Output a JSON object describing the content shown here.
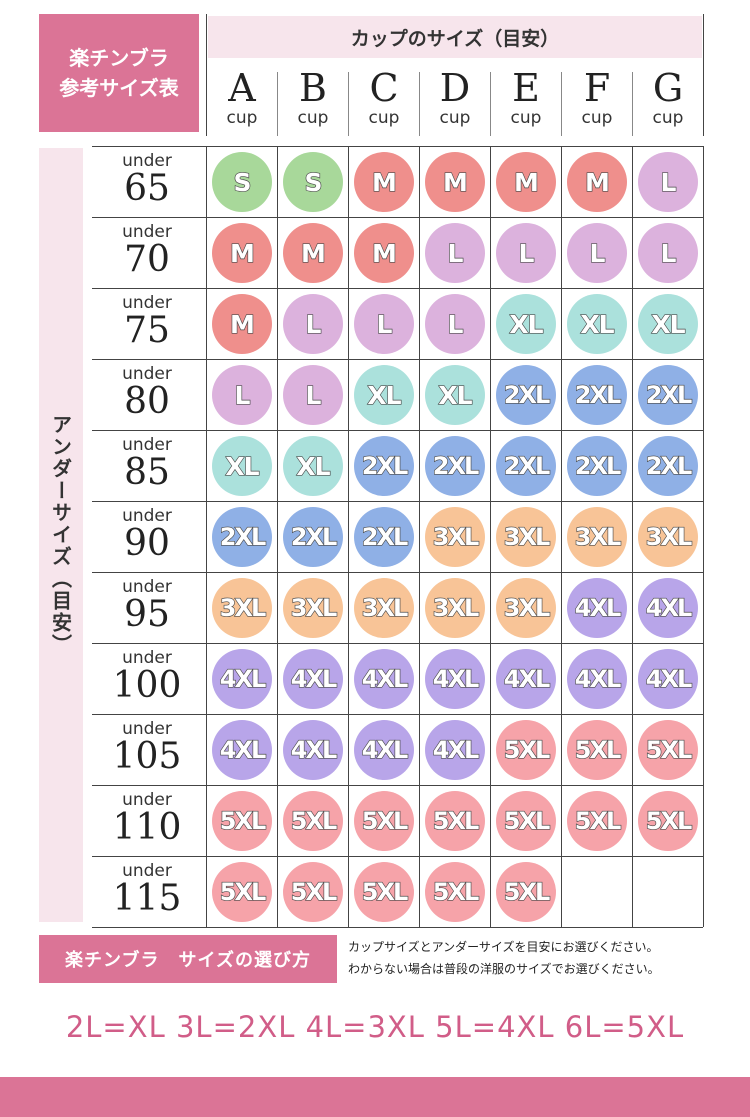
{
  "title_box": {
    "line1": "楽チンブラ",
    "line2": "参考サイズ表"
  },
  "cup_header": "カップのサイズ（目安）",
  "under_header": "アンダーサイズ（目安）",
  "cups": [
    {
      "letter": "A",
      "word": "cup"
    },
    {
      "letter": "B",
      "word": "cup"
    },
    {
      "letter": "C",
      "word": "cup"
    },
    {
      "letter": "D",
      "word": "cup"
    },
    {
      "letter": "E",
      "word": "cup"
    },
    {
      "letter": "F",
      "word": "cup"
    },
    {
      "letter": "G",
      "word": "cup"
    }
  ],
  "rows": [
    {
      "under": "under",
      "num": "65",
      "sizes": [
        "S",
        "S",
        "M",
        "M",
        "M",
        "M",
        "L"
      ]
    },
    {
      "under": "under",
      "num": "70",
      "sizes": [
        "M",
        "M",
        "M",
        "L",
        "L",
        "L",
        "L"
      ]
    },
    {
      "under": "under",
      "num": "75",
      "sizes": [
        "M",
        "L",
        "L",
        "L",
        "XL",
        "XL",
        "XL"
      ]
    },
    {
      "under": "under",
      "num": "80",
      "sizes": [
        "L",
        "L",
        "XL",
        "XL",
        "2XL",
        "2XL",
        "2XL"
      ]
    },
    {
      "under": "under",
      "num": "85",
      "sizes": [
        "XL",
        "XL",
        "2XL",
        "2XL",
        "2XL",
        "2XL",
        "2XL"
      ]
    },
    {
      "under": "under",
      "num": "90",
      "sizes": [
        "2XL",
        "2XL",
        "2XL",
        "3XL",
        "3XL",
        "3XL",
        "3XL"
      ]
    },
    {
      "under": "under",
      "num": "95",
      "sizes": [
        "3XL",
        "3XL",
        "3XL",
        "3XL",
        "3XL",
        "4XL",
        "4XL"
      ]
    },
    {
      "under": "under",
      "num": "100",
      "sizes": [
        "4XL",
        "4XL",
        "4XL",
        "4XL",
        "4XL",
        "4XL",
        "4XL"
      ]
    },
    {
      "under": "under",
      "num": "105",
      "sizes": [
        "4XL",
        "4XL",
        "4XL",
        "4XL",
        "5XL",
        "5XL",
        "5XL"
      ]
    },
    {
      "under": "under",
      "num": "110",
      "sizes": [
        "5XL",
        "5XL",
        "5XL",
        "5XL",
        "5XL",
        "5XL",
        "5XL"
      ]
    },
    {
      "under": "under",
      "num": "115",
      "sizes": [
        "5XL",
        "5XL",
        "5XL",
        "5XL",
        "5XL",
        "",
        ""
      ]
    }
  ],
  "size_colors": {
    "S": "#a8d89a",
    "M": "#ef8f8c",
    "L": "#dcb2dd",
    "XL": "#abe1dc",
    "2XL": "#8fb0e6",
    "3XL": "#f8c497",
    "4XL": "#b8a5e9",
    "5XL": "#f6a3a9"
  },
  "howto": {
    "label": "楽チンブラ　サイズの選び方",
    "line1": "カップサイズとアンダーサイズを目安にお選びください。",
    "line2": "わからない場合は普段の洋服のサイズでお選びください。"
  },
  "equivalence": "2L=XL 3L=2XL 4L=3XL 5L=4XL 6L=5XL",
  "colors": {
    "accent_pink": "#db7496",
    "light_pink": "#f7e5ec",
    "equiv_text": "#d15d88"
  }
}
